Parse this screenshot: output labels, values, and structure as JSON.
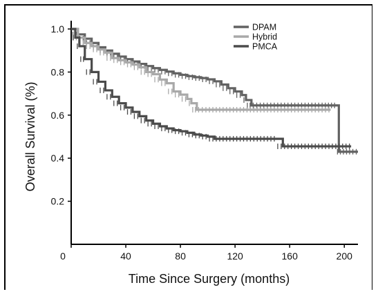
{
  "chart_data": {
    "type": "line",
    "title": "",
    "xlabel": "Time Since Surgery (months)",
    "ylabel": "Overall Survival (%)",
    "xlim": [
      0,
      210
    ],
    "ylim": [
      0,
      1.0
    ],
    "x_ticks": [
      "0",
      "40",
      "80",
      "120",
      "160",
      "200"
    ],
    "x_tick_values": [
      0,
      40,
      80,
      120,
      160,
      200
    ],
    "y_ticks": [
      "0.2",
      "0.4",
      "0.6",
      "0.8",
      "1.0"
    ],
    "y_tick_values": [
      0.2,
      0.4,
      0.6,
      0.8,
      1.0
    ],
    "legend_position": "top-right",
    "grid": false,
    "series": [
      {
        "name": "DPAM",
        "color": "#626262",
        "points": [
          [
            0,
            1.0
          ],
          [
            5,
            0.975
          ],
          [
            10,
            0.955
          ],
          [
            15,
            0.935
          ],
          [
            20,
            0.915
          ],
          [
            25,
            0.9
          ],
          [
            30,
            0.885
          ],
          [
            35,
            0.872
          ],
          [
            40,
            0.86
          ],
          [
            45,
            0.849
          ],
          [
            50,
            0.838
          ],
          [
            55,
            0.828
          ],
          [
            60,
            0.818
          ],
          [
            65,
            0.81
          ],
          [
            70,
            0.802
          ],
          [
            75,
            0.794
          ],
          [
            80,
            0.787
          ],
          [
            85,
            0.781
          ],
          [
            90,
            0.776
          ],
          [
            95,
            0.772
          ],
          [
            100,
            0.766
          ],
          [
            105,
            0.757
          ],
          [
            110,
            0.742
          ],
          [
            115,
            0.725
          ],
          [
            120,
            0.71
          ],
          [
            125,
            0.693
          ],
          [
            128,
            0.67
          ],
          [
            132,
            0.645
          ],
          [
            150,
            0.645
          ],
          [
            170,
            0.645
          ],
          [
            185,
            0.645
          ],
          [
            194,
            0.645
          ],
          [
            196,
            0.43
          ],
          [
            205,
            0.43
          ],
          [
            210,
            0.43
          ]
        ]
      },
      {
        "name": "Hybrid",
        "color": "#a9a9a9",
        "points": [
          [
            0,
            1.0
          ],
          [
            5,
            0.96
          ],
          [
            10,
            0.935
          ],
          [
            15,
            0.92
          ],
          [
            20,
            0.905
          ],
          [
            25,
            0.89
          ],
          [
            30,
            0.865
          ],
          [
            35,
            0.855
          ],
          [
            40,
            0.845
          ],
          [
            45,
            0.835
          ],
          [
            50,
            0.822
          ],
          [
            55,
            0.8
          ],
          [
            60,
            0.79
          ],
          [
            65,
            0.765
          ],
          [
            70,
            0.748
          ],
          [
            75,
            0.71
          ],
          [
            80,
            0.695
          ],
          [
            85,
            0.675
          ],
          [
            88,
            0.655
          ],
          [
            92,
            0.625
          ],
          [
            100,
            0.625
          ],
          [
            120,
            0.625
          ],
          [
            140,
            0.625
          ],
          [
            160,
            0.625
          ],
          [
            180,
            0.625
          ],
          [
            190,
            0.625
          ]
        ]
      },
      {
        "name": "PMCA",
        "color": "#4b4b4b",
        "points": [
          [
            0,
            1.0
          ],
          [
            3,
            0.96
          ],
          [
            6,
            0.92
          ],
          [
            10,
            0.86
          ],
          [
            15,
            0.8
          ],
          [
            20,
            0.755
          ],
          [
            25,
            0.715
          ],
          [
            30,
            0.685
          ],
          [
            35,
            0.655
          ],
          [
            40,
            0.635
          ],
          [
            45,
            0.615
          ],
          [
            50,
            0.595
          ],
          [
            55,
            0.575
          ],
          [
            60,
            0.56
          ],
          [
            65,
            0.548
          ],
          [
            70,
            0.538
          ],
          [
            75,
            0.53
          ],
          [
            80,
            0.525
          ],
          [
            85,
            0.518
          ],
          [
            90,
            0.51
          ],
          [
            95,
            0.505
          ],
          [
            100,
            0.5
          ],
          [
            105,
            0.49
          ],
          [
            120,
            0.49
          ],
          [
            140,
            0.49
          ],
          [
            150,
            0.49
          ],
          [
            155,
            0.455
          ],
          [
            170,
            0.455
          ],
          [
            190,
            0.455
          ],
          [
            200,
            0.455
          ],
          [
            205,
            0.455
          ]
        ]
      }
    ]
  }
}
